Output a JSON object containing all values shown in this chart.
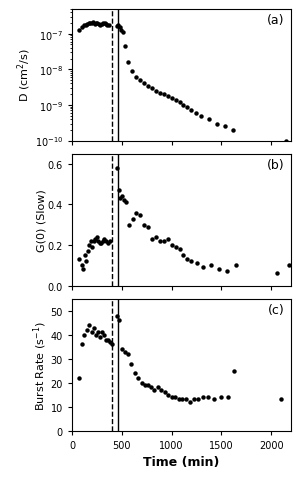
{
  "vline_dashed": 400,
  "vline_solid": 460,
  "panel_a_x": [
    75,
    100,
    120,
    140,
    155,
    170,
    185,
    200,
    215,
    230,
    245,
    255,
    270,
    285,
    300,
    315,
    330,
    345,
    355,
    370,
    455,
    465,
    480,
    495,
    510,
    530,
    560,
    600,
    640,
    680,
    720,
    760,
    800,
    840,
    880,
    920,
    960,
    1000,
    1040,
    1080,
    1120,
    1160,
    1200,
    1250,
    1300,
    1380,
    1460,
    1540,
    1620,
    2150
  ],
  "panel_a_y": [
    1.3e-07,
    1.5e-07,
    1.7e-07,
    1.8e-07,
    1.9e-07,
    2e-07,
    1.95e-07,
    2.05e-07,
    2.1e-07,
    1.9e-07,
    2e-07,
    2.05e-07,
    1.85e-07,
    1.8e-07,
    1.9e-07,
    1.95e-07,
    2e-07,
    1.85e-07,
    1.8e-07,
    1.7e-07,
    1.6e-07,
    1.7e-07,
    1.5e-07,
    1.3e-07,
    1.1e-07,
    4.5e-08,
    1.6e-08,
    9e-09,
    6e-09,
    5e-09,
    4e-09,
    3.5e-09,
    3e-09,
    2.5e-09,
    2.2e-09,
    2e-09,
    1.8e-09,
    1.6e-09,
    1.4e-09,
    1.2e-09,
    1e-09,
    9e-10,
    7e-10,
    6e-10,
    5e-10,
    4e-10,
    3e-10,
    2.5e-10,
    2e-10,
    1e-10
  ],
  "panel_b_x": [
    75,
    100,
    115,
    130,
    145,
    160,
    175,
    190,
    205,
    220,
    235,
    250,
    265,
    280,
    295,
    310,
    325,
    340,
    360,
    380,
    455,
    470,
    485,
    500,
    520,
    545,
    575,
    610,
    645,
    680,
    720,
    760,
    800,
    840,
    880,
    920,
    960,
    1000,
    1040,
    1080,
    1120,
    1160,
    1200,
    1260,
    1320,
    1400,
    1480,
    1560,
    1650,
    2060,
    2180
  ],
  "panel_b_y": [
    0.13,
    0.1,
    0.08,
    0.15,
    0.12,
    0.17,
    0.2,
    0.22,
    0.19,
    0.22,
    0.23,
    0.24,
    0.22,
    0.21,
    0.21,
    0.22,
    0.23,
    0.22,
    0.21,
    0.22,
    0.58,
    0.47,
    0.43,
    0.44,
    0.42,
    0.41,
    0.3,
    0.33,
    0.36,
    0.35,
    0.3,
    0.29,
    0.23,
    0.24,
    0.22,
    0.22,
    0.23,
    0.2,
    0.19,
    0.18,
    0.15,
    0.13,
    0.12,
    0.11,
    0.09,
    0.1,
    0.08,
    0.07,
    0.1,
    0.06,
    0.1
  ],
  "panel_c_x": [
    75,
    100,
    125,
    150,
    175,
    200,
    225,
    245,
    265,
    285,
    305,
    325,
    345,
    365,
    385,
    405,
    455,
    475,
    500,
    530,
    560,
    595,
    630,
    665,
    700,
    735,
    765,
    795,
    825,
    860,
    895,
    930,
    965,
    1000,
    1035,
    1070,
    1105,
    1145,
    1185,
    1225,
    1265,
    1315,
    1370,
    1430,
    1500,
    1565,
    1625,
    2100
  ],
  "panel_c_y": [
    22,
    36,
    40,
    42,
    44,
    41,
    43,
    40,
    41,
    39,
    41,
    40,
    38,
    38,
    37,
    36,
    48,
    46,
    34,
    33,
    32,
    28,
    24,
    22,
    20,
    19,
    19,
    18,
    17,
    18,
    17,
    16,
    15,
    14,
    14,
    13,
    13,
    13,
    12,
    13,
    13,
    14,
    14,
    13,
    14,
    14,
    25,
    13
  ],
  "xlim": [
    0,
    2200
  ],
  "xticks": [
    0,
    500,
    1000,
    1500,
    2000
  ],
  "xlabel": "Time (min)",
  "panel_a_ylabel": "D (cm$^2$/s)",
  "panel_a_label": "(a)",
  "panel_b_ylim": [
    0.0,
    0.65
  ],
  "panel_b_yticks": [
    0.0,
    0.2,
    0.4,
    0.6
  ],
  "panel_b_ylabel": "G(0) (Slow)",
  "panel_b_label": "(b)",
  "panel_c_ylim": [
    0,
    55
  ],
  "panel_c_yticks": [
    0,
    10,
    20,
    30,
    40,
    50
  ],
  "panel_c_ylabel": "Burst Rate (s$^{-1}$)",
  "panel_c_label": "(c)",
  "dot_color": "black",
  "markersize": 3.2,
  "background_color": "white",
  "line_color": "black"
}
